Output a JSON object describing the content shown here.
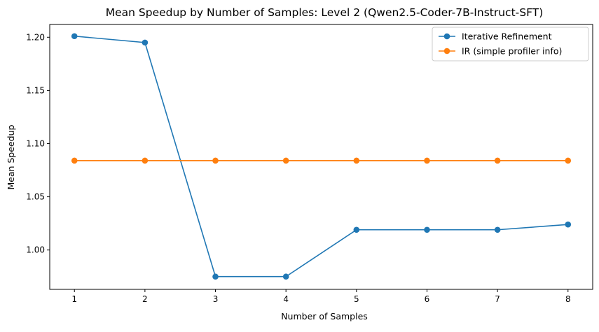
{
  "chart_data": {
    "type": "line",
    "title": "Mean Speedup by Number of Samples: Level 2 (Qwen2.5-Coder-7B-Instruct-SFT)",
    "xlabel": "Number of Samples",
    "ylabel": "Mean Speedup",
    "x": [
      1,
      2,
      3,
      4,
      5,
      6,
      7,
      8
    ],
    "xticks": [
      "1",
      "2",
      "3",
      "4",
      "5",
      "6",
      "7",
      "8"
    ],
    "yticks": [
      "1.00",
      "1.05",
      "1.10",
      "1.15",
      "1.20"
    ],
    "ylim": [
      0.963,
      1.212
    ],
    "xlim": [
      0.65,
      8.35
    ],
    "grid": false,
    "legend_position": "top-right",
    "series": [
      {
        "name": "Iterative Refinement",
        "color": "#1f77b4",
        "marker": "circle",
        "values": [
          1.201,
          1.195,
          0.975,
          0.975,
          1.019,
          1.019,
          1.019,
          1.024
        ]
      },
      {
        "name": "IR (simple profiler info)",
        "color": "#ff7f0e",
        "marker": "circle",
        "values": [
          1.084,
          1.084,
          1.084,
          1.084,
          1.084,
          1.084,
          1.084,
          1.084
        ]
      }
    ]
  }
}
